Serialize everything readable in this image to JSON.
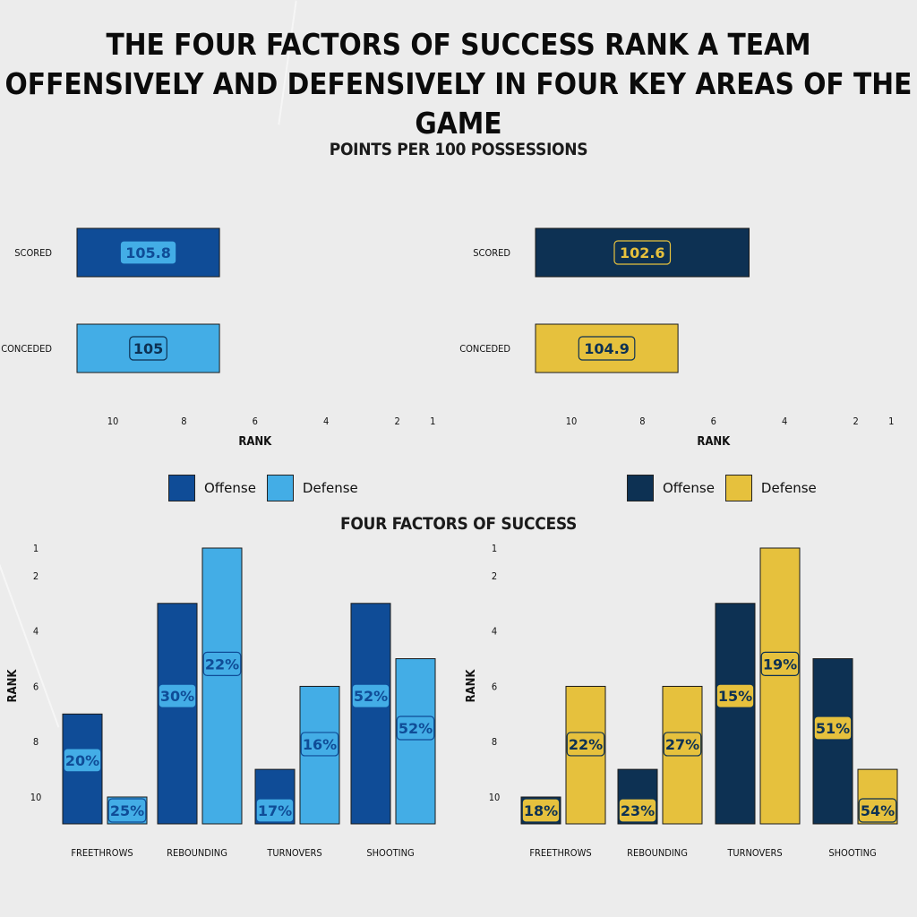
{
  "title_line1": "THE FOUR FACTORS OF SUCCESS RANK A TEAM",
  "title_line2": "OFFENSIVELY AND DEFENSIVELY IN FOUR KEY AREAS OF THE GAME",
  "points_heading": "POINTS PER 100 POSSESSIONS",
  "factors_heading": "FOUR FACTORS OF SUCCESS",
  "colors": {
    "left_offense": "#0f4c97",
    "left_defense": "#43ade6",
    "right_offense": "#0d3153",
    "right_defense": "#e6c13d"
  },
  "chart_data": [
    {
      "type": "bar",
      "orientation": "horizontal",
      "categories": [
        "SCORED",
        "CONCEDED"
      ],
      "series": [
        {
          "name": "",
          "values": [
            105.8,
            105
          ]
        }
      ],
      "ranks": [
        7,
        7
      ],
      "xlabel": "RANK",
      "xticks": [
        10,
        8,
        6,
        4,
        2,
        1
      ],
      "colors": [
        "#0f4c97",
        "#43ade6"
      ],
      "legend": [
        {
          "name": "Offense",
          "color": "#0f4c97"
        },
        {
          "name": "Defense",
          "color": "#43ade6"
        }
      ]
    },
    {
      "type": "bar",
      "orientation": "horizontal",
      "categories": [
        "SCORED",
        "CONCEDED"
      ],
      "series": [
        {
          "name": "",
          "values": [
            102.6,
            104.9
          ]
        }
      ],
      "ranks": [
        5,
        7
      ],
      "xlabel": "RANK",
      "xticks": [
        10,
        8,
        6,
        4,
        2,
        1
      ],
      "colors": [
        "#0d3153",
        "#e6c13d"
      ],
      "legend": [
        {
          "name": "Offense",
          "color": "#0d3153"
        },
        {
          "name": "Defense",
          "color": "#e6c13d"
        }
      ]
    },
    {
      "type": "bar",
      "categories": [
        "FREETHROWS",
        "REBOUNDING",
        "TURNOVERS",
        "SHOOTING"
      ],
      "series": [
        {
          "name": "Offense",
          "ranks": [
            7,
            3,
            9,
            3
          ],
          "labels": [
            "20%",
            "30%",
            "17%",
            "52%"
          ],
          "color": "#0f4c97"
        },
        {
          "name": "Defense",
          "ranks": [
            10,
            1,
            6,
            5
          ],
          "labels": [
            "25%",
            "22%",
            "16%",
            "52%"
          ],
          "color": "#43ade6"
        }
      ],
      "ylabel": "RANK",
      "yticks": [
        1,
        2,
        4,
        6,
        8,
        10
      ]
    },
    {
      "type": "bar",
      "categories": [
        "FREETHROWS",
        "REBOUNDING",
        "TURNOVERS",
        "SHOOTING"
      ],
      "series": [
        {
          "name": "Offense",
          "ranks": [
            10,
            9,
            3,
            5
          ],
          "labels": [
            "18%",
            "23%",
            "15%",
            "51%"
          ],
          "color": "#0d3153"
        },
        {
          "name": "Defense",
          "ranks": [
            6,
            6,
            1,
            9
          ],
          "labels": [
            "22%",
            "27%",
            "19%",
            "54%"
          ],
          "color": "#e6c13d"
        }
      ],
      "ylabel": "RANK",
      "yticks": [
        1,
        2,
        4,
        6,
        8,
        10
      ]
    }
  ]
}
